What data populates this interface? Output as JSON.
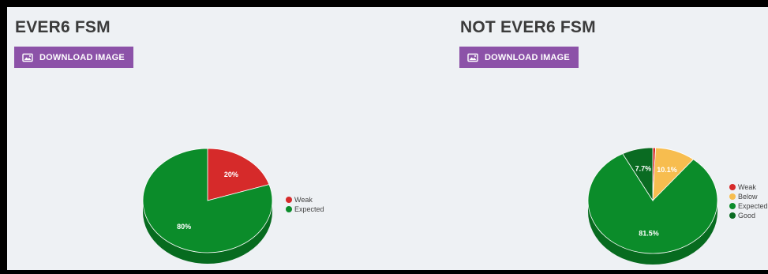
{
  "panels": [
    {
      "title": "EVER6 FSM",
      "download_label": "DOWNLOAD IMAGE",
      "download_icon": "image-icon"
    },
    {
      "title": "NOT EVER6 FSM",
      "download_label": "DOWNLOAD IMAGE",
      "download_icon": "image-icon"
    }
  ],
  "chart_data": [
    {
      "type": "pie",
      "title": "",
      "legend_position": "right",
      "slices": [
        {
          "name": "Weak",
          "value": 20,
          "label": "20%",
          "color": "#d62a2a",
          "side_color": "#a11f1f"
        },
        {
          "name": "Expected",
          "value": 80,
          "label": "80%",
          "color": "#0b8c2a",
          "side_color": "#076b1f"
        }
      ],
      "legend": [
        "Weak",
        "Expected"
      ]
    },
    {
      "type": "pie",
      "title": "",
      "legend_position": "right",
      "slices": [
        {
          "name": "Weak",
          "value": 0.7,
          "label": "",
          "color": "#d62a2a",
          "side_color": "#a11f1f"
        },
        {
          "name": "Below",
          "value": 10.1,
          "label": "10.1%",
          "color": "#f7bd4f",
          "side_color": "#c9952e"
        },
        {
          "name": "Expected",
          "value": 81.5,
          "label": "81.5%",
          "color": "#0b8c2a",
          "side_color": "#076b1f"
        },
        {
          "name": "Good",
          "value": 7.7,
          "label": "7.7%",
          "color": "#0a6b22",
          "side_color": "#064d18"
        }
      ],
      "legend": [
        "Weak",
        "Below",
        "Expected",
        "Good"
      ]
    }
  ]
}
